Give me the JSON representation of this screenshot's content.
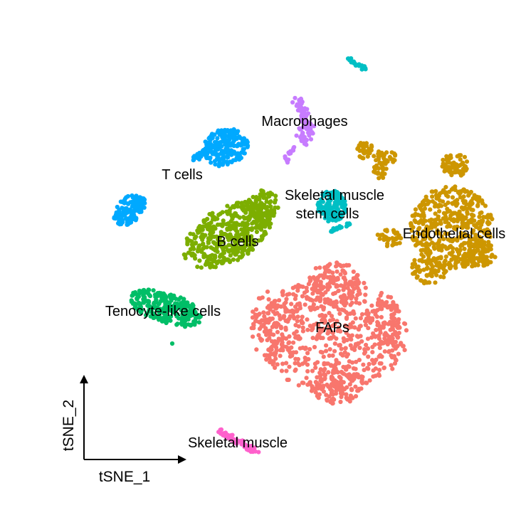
{
  "chart_data": {
    "type": "scatter",
    "xlabel": "tSNE_1",
    "ylabel": "tSNE_2",
    "clusters": [
      {
        "name": "Macrophages",
        "color": "#C77CFF"
      },
      {
        "name": "T cells",
        "color": "#00A9FF"
      },
      {
        "name": "Skeletal muscle\nstem cells",
        "label_lines": [
          "Skeletal muscle",
          "stem cells"
        ],
        "color": "#00BFC4"
      },
      {
        "name": "B cells",
        "color": "#7CAE00"
      },
      {
        "name": "Endothelial cells",
        "color": "#CD9600"
      },
      {
        "name": "Tenocyte-like cells",
        "color": "#00BE67"
      },
      {
        "name": "FAPs",
        "color": "#F8766D"
      },
      {
        "name": "Skeletal muscle",
        "color": "#FF61CC"
      }
    ]
  }
}
